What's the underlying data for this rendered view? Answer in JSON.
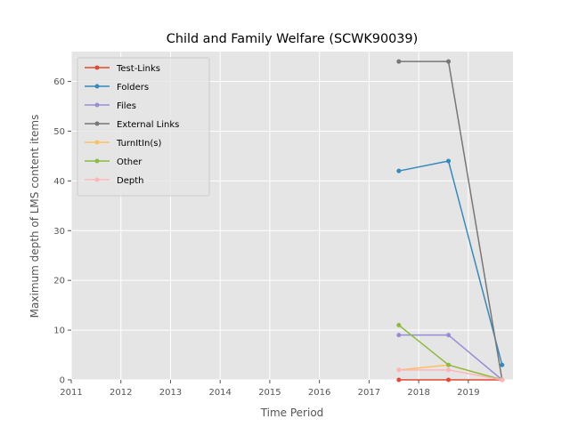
{
  "chart_data": {
    "type": "line",
    "title": "Child and Family Welfare (SCWK90039)",
    "xlabel": "Time Period",
    "ylabel": "Maximum depth of LMS content items",
    "xlim": [
      2011,
      2019.9
    ],
    "ylim": [
      0,
      66
    ],
    "xticks": [
      "2011",
      "2012",
      "2013",
      "2014",
      "2015",
      "2016",
      "2017",
      "2018",
      "2019"
    ],
    "yticks": [
      "0",
      "10",
      "20",
      "30",
      "40",
      "50",
      "60"
    ],
    "grid": true,
    "legend_position": "upper-left",
    "x": [
      2017.6,
      2018.6,
      2019.68
    ],
    "series": [
      {
        "name": "Test-Links",
        "color": "#e24a33",
        "values": [
          0,
          0,
          0
        ]
      },
      {
        "name": "Folders",
        "color": "#348abd",
        "values": [
          42,
          44,
          3
        ]
      },
      {
        "name": "Files",
        "color": "#988ed5",
        "values": [
          9,
          9,
          0
        ]
      },
      {
        "name": "External Links",
        "color": "#777777",
        "values": [
          64,
          64,
          0
        ]
      },
      {
        "name": "TurnItIn(s)",
        "color": "#fbc15e",
        "values": [
          2,
          3,
          0
        ]
      },
      {
        "name": "Other",
        "color": "#8eba42",
        "values": [
          11,
          3,
          0
        ]
      },
      {
        "name": "Depth",
        "color": "#ffb5b8",
        "values": [
          2,
          2,
          0
        ]
      }
    ]
  }
}
